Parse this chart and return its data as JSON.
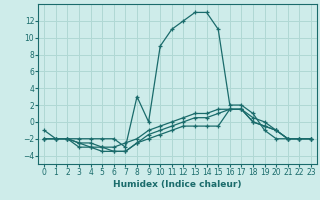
{
  "xlabel": "Humidex (Indice chaleur)",
  "ylabel": "",
  "background_color": "#ceecea",
  "grid_color": "#b0d8d4",
  "line_color": "#1a6b6b",
  "xlim": [
    -0.5,
    23.5
  ],
  "ylim": [
    -5,
    14
  ],
  "yticks": [
    -4,
    -2,
    0,
    2,
    4,
    6,
    8,
    10,
    12
  ],
  "xticks": [
    0,
    1,
    2,
    3,
    4,
    5,
    6,
    7,
    8,
    9,
    10,
    11,
    12,
    13,
    14,
    15,
    16,
    17,
    18,
    19,
    20,
    21,
    22,
    23
  ],
  "series": [
    {
      "x": [
        0,
        1,
        2,
        3,
        4,
        5,
        6,
        7,
        8,
        9,
        10,
        11,
        12,
        13,
        14,
        15,
        16,
        17,
        18,
        19,
        20,
        21,
        22,
        23
      ],
      "y": [
        -1,
        -2,
        -2,
        -2,
        -2,
        -2,
        -2,
        -3,
        3,
        0,
        9,
        11,
        12,
        13,
        13,
        11,
        2,
        2,
        1,
        -1,
        -2,
        -2,
        -2,
        -2
      ]
    },
    {
      "x": [
        0,
        1,
        2,
        3,
        4,
        5,
        6,
        7,
        8,
        9,
        10,
        11,
        12,
        13,
        14,
        15,
        16,
        17,
        18,
        19,
        20,
        21,
        22,
        23
      ],
      "y": [
        -2,
        -2,
        -2,
        -3,
        -3,
        -3.5,
        -3.5,
        -3.5,
        -2.5,
        -2,
        -1.5,
        -1,
        -0.5,
        -0.5,
        -0.5,
        -0.5,
        1.5,
        1.5,
        0,
        -0.5,
        -1,
        -2,
        -2,
        -2
      ]
    },
    {
      "x": [
        0,
        1,
        2,
        3,
        4,
        5,
        6,
        7,
        8,
        9,
        10,
        11,
        12,
        13,
        14,
        15,
        16,
        17,
        18,
        19,
        20,
        21,
        22,
        23
      ],
      "y": [
        -2,
        -2,
        -2,
        -2.5,
        -3,
        -3,
        -3.5,
        -3.5,
        -2.5,
        -1.5,
        -1,
        -0.5,
        0,
        0.5,
        0.5,
        1,
        1.5,
        1.5,
        0,
        -0.5,
        -1,
        -2,
        -2,
        -2
      ]
    },
    {
      "x": [
        0,
        1,
        2,
        3,
        4,
        5,
        6,
        7,
        8,
        9,
        10,
        11,
        12,
        13,
        14,
        15,
        16,
        17,
        18,
        19,
        20,
        21,
        22,
        23
      ],
      "y": [
        -2,
        -2,
        -2,
        -2.5,
        -2.5,
        -3,
        -3,
        -2.5,
        -2,
        -1,
        -0.5,
        0,
        0.5,
        1,
        1,
        1.5,
        1.5,
        1.5,
        0.5,
        0,
        -1,
        -2,
        -2,
        -2
      ]
    }
  ]
}
